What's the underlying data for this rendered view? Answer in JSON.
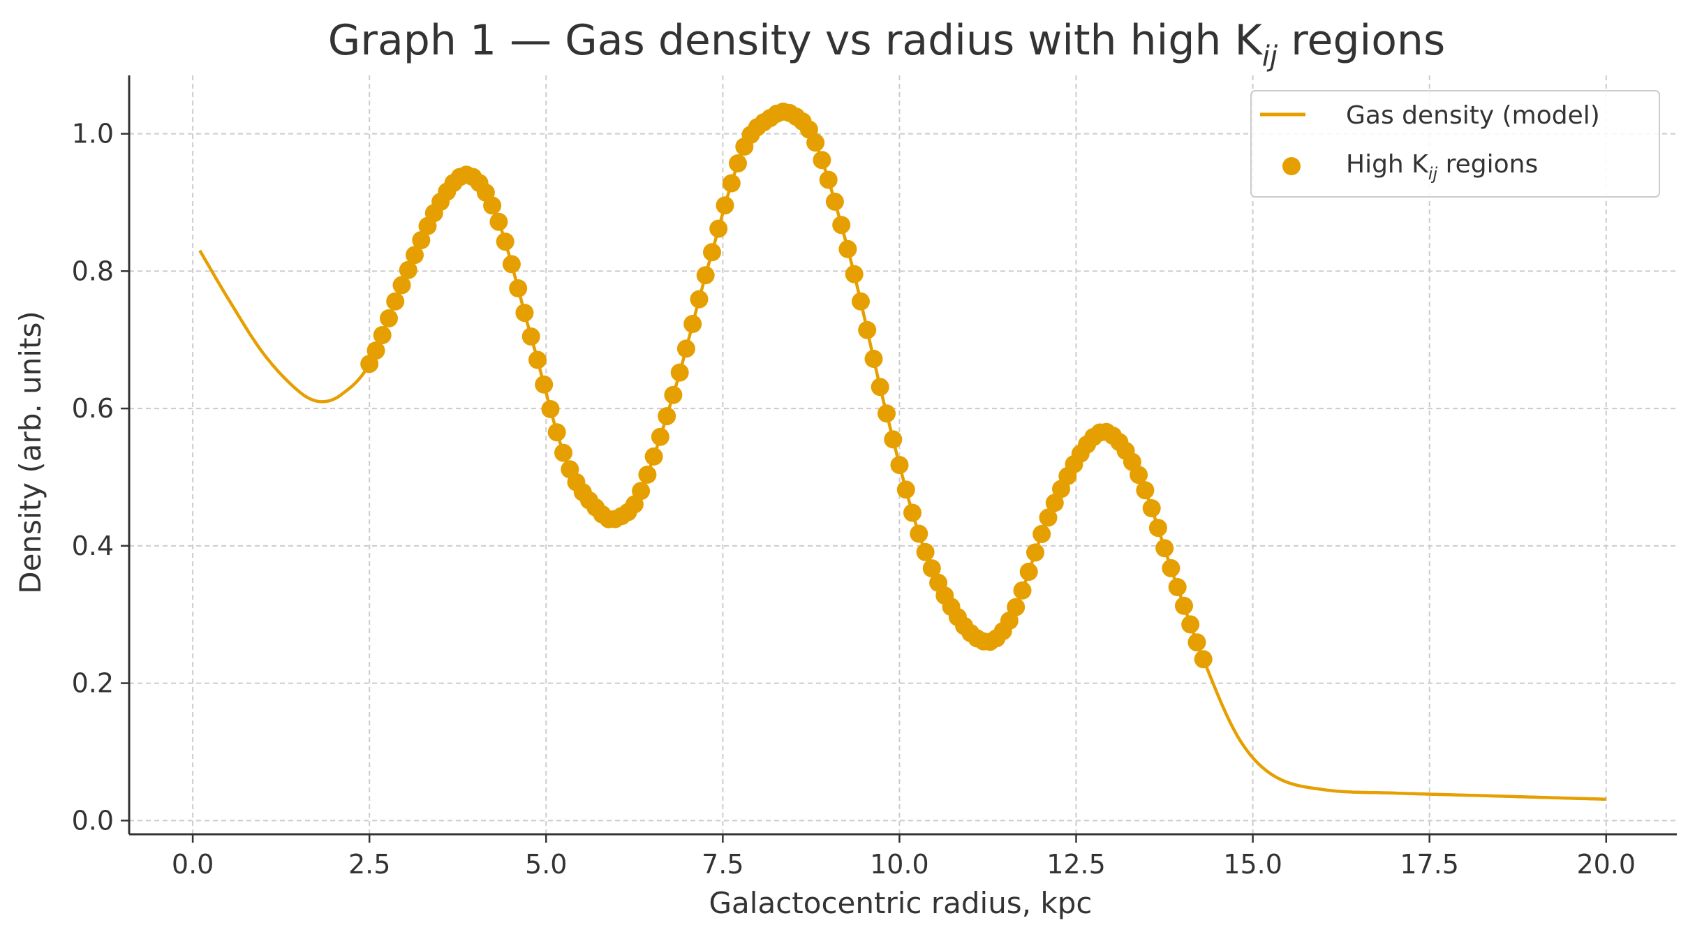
{
  "chart_data": {
    "type": "line",
    "title": "Graph 1 — Gas density vs radius with high K",
    "title_sub": "ij",
    "title_suffix": " regions",
    "xlabel": "Galactocentric radius, kpc",
    "ylabel": "Density (arb. units)",
    "xlim": [
      -0.9,
      21.0
    ],
    "ylim": [
      -0.02,
      1.085
    ],
    "xticks": [
      "0.0",
      "2.5",
      "5.0",
      "7.5",
      "10.0",
      "12.5",
      "15.0",
      "17.5",
      "20.0"
    ],
    "xtick_values": [
      0,
      2.5,
      5,
      7.5,
      10,
      12.5,
      15,
      17.5,
      20
    ],
    "yticks": [
      "0.0",
      "0.2",
      "0.4",
      "0.6",
      "0.8",
      "1.0"
    ],
    "ytick_values": [
      0,
      0.2,
      0.4,
      0.6,
      0.8,
      1.0
    ],
    "grid": true,
    "legend_position": "top-right",
    "legend": {
      "line_label": "Gas density (model)",
      "points_label_prefix": "High K",
      "points_label_sub": "ij",
      "points_label_suffix": " regions"
    },
    "series": [
      {
        "name": "Gas density (model)",
        "kind": "line",
        "color": "#E69F00",
        "x": [
          0.1,
          0.5,
          1.0,
          1.5,
          1.8,
          2.1,
          2.5,
          3.0,
          3.5,
          3.9,
          4.3,
          4.8,
          5.3,
          5.8,
          6.0,
          6.3,
          6.8,
          7.3,
          7.8,
          8.2,
          8.45,
          8.8,
          9.3,
          9.8,
          10.3,
          10.8,
          11.25,
          11.6,
          12.1,
          12.6,
          12.95,
          13.4,
          13.9,
          14.3,
          14.8,
          15.3,
          16.0,
          17.0,
          18.0,
          19.0,
          20.0
        ],
        "y": [
          0.83,
          0.76,
          0.68,
          0.625,
          0.61,
          0.62,
          0.665,
          0.79,
          0.9,
          0.94,
          0.88,
          0.7,
          0.52,
          0.445,
          0.44,
          0.47,
          0.62,
          0.81,
          0.98,
          1.025,
          1.03,
          0.99,
          0.82,
          0.6,
          0.41,
          0.3,
          0.26,
          0.3,
          0.44,
          0.54,
          0.565,
          0.5,
          0.35,
          0.235,
          0.12,
          0.065,
          0.045,
          0.04,
          0.037,
          0.034,
          0.031
        ]
      },
      {
        "name": "High Kij regions",
        "kind": "points",
        "color": "#E69F00",
        "x_start": 2.5,
        "x_end": 14.3,
        "count": 130
      }
    ]
  }
}
